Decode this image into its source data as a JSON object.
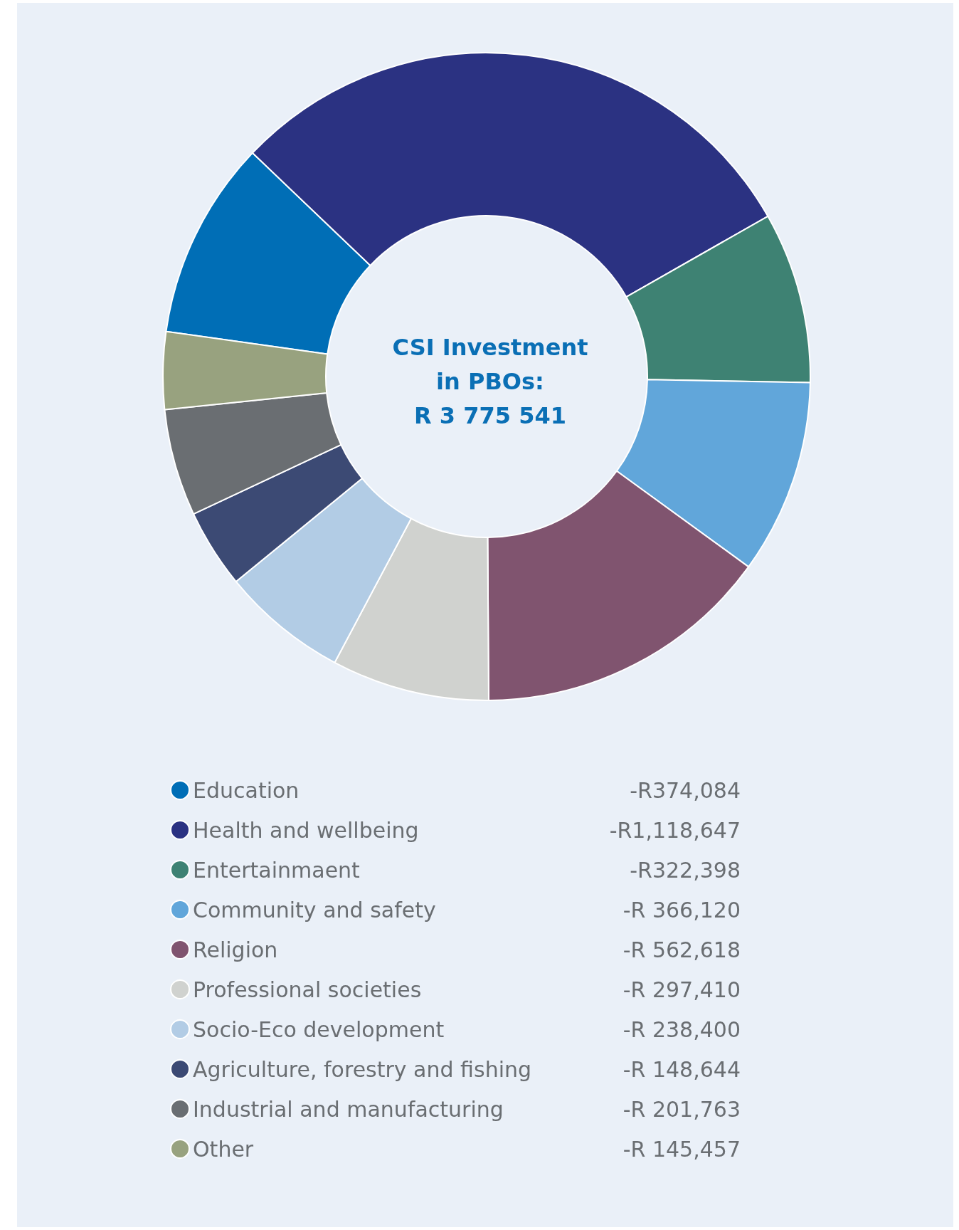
{
  "chart_data": {
    "type": "donut",
    "title": "CSI Investment\nin PBOs:\nR 3 775 541",
    "categories": [
      "Education",
      "Health and wellbeing",
      "Entertainmaent",
      "Community and safety",
      "Religion",
      "Professional societies",
      "Socio-Eco development",
      "Agriculture, forestry and fishing",
      "Industrial and manufacturing",
      "Other"
    ],
    "values": [
      374084,
      1118647,
      322398,
      366120,
      562618,
      297410,
      238400,
      148644,
      201763,
      145457
    ],
    "value_labels": [
      "-R374,084",
      "-R1,118,647",
      "-R322,398",
      "-R 366,120",
      "-R 562,618",
      "-R 297,410",
      "-R 238,400",
      "-R 148,644",
      "-R 201,763",
      "-R 145,457"
    ],
    "colors": [
      "#006eb6",
      "#2b3282",
      "#3e8273",
      "#61a6da",
      "#80546f",
      "#d0d2cf",
      "#b2cce5",
      "#3c4a74",
      "#6a6e72",
      "#98a27f"
    ],
    "legend": "bottom"
  }
}
